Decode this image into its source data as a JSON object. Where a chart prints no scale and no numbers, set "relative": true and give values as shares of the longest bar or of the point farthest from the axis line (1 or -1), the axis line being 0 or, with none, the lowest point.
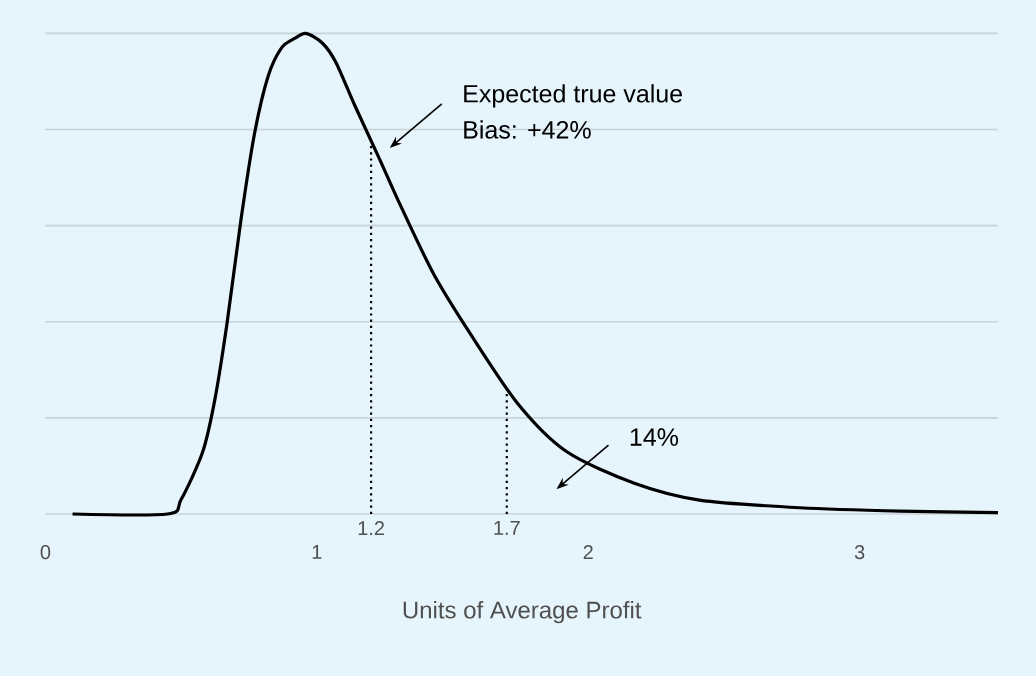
{
  "chart_data": {
    "type": "line",
    "relative": true,
    "xlabel": "Units of Average Profit",
    "xlim": [
      0,
      3.51
    ],
    "xticks": [
      0,
      1,
      2,
      3
    ],
    "grid": "y",
    "marker": "none",
    "line_style": "solid",
    "series": [
      {
        "color": "#000000",
        "x": [
          0.1,
          0.45,
          0.5,
          0.58,
          0.625,
          0.67,
          0.72,
          0.77,
          0.82,
          0.87,
          0.92,
          0.96,
          1.02,
          1.07,
          1.14,
          1.23,
          1.31,
          1.43,
          1.56,
          1.74,
          1.92,
          2.17,
          2.41,
          2.78,
          3.15,
          3.51
        ],
        "values": [
          0,
          0,
          0.03,
          0.13,
          0.24,
          0.4,
          0.61,
          0.79,
          0.91,
          0.97,
          0.99,
          1.0,
          0.98,
          0.94,
          0.85,
          0.74,
          0.64,
          0.5,
          0.38,
          0.23,
          0.13,
          0.064,
          0.029,
          0.013,
          0.006,
          0.003
        ]
      }
    ],
    "ref_lines": [
      {
        "axis": "x",
        "value": 1.2,
        "label": "1.2",
        "line_style": "dotted"
      },
      {
        "axis": "x",
        "value": 1.7,
        "label": "1.7",
        "line_style": "dotted"
      }
    ],
    "annotations": [
      "Expected true value",
      "Bias: +42%",
      "14%"
    ]
  }
}
